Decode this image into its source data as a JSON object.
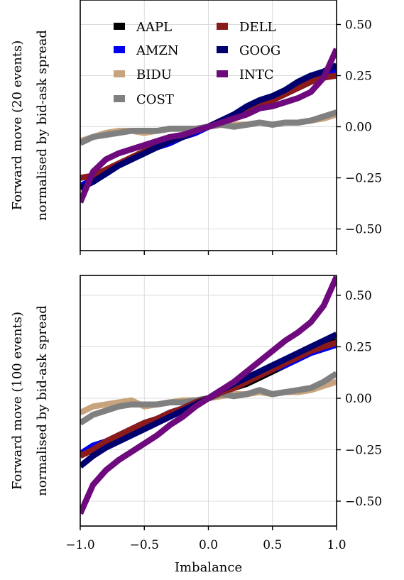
{
  "chart_data": [
    {
      "type": "line",
      "ylabel_lines": [
        "Forward move (20 events)",
        "normalised by bid-ask spread"
      ],
      "xlabel": "",
      "xlim": [
        -1.0,
        1.0
      ],
      "ylim": [
        -0.6,
        0.6
      ],
      "yaxis_side": "right",
      "grid": true,
      "legend": "top-center",
      "xticks": [
        -1.0,
        -0.5,
        0.0,
        0.5,
        1.0
      ],
      "yticks": [
        0.5,
        0.25,
        0.0,
        -0.25,
        -0.5
      ],
      "ytick_labels": [
        "0.50",
        "0.25",
        "0.00",
        "−0.25",
        "−0.50"
      ],
      "x": [
        -1.0,
        -0.9,
        -0.8,
        -0.7,
        -0.6,
        -0.5,
        -0.4,
        -0.3,
        -0.2,
        -0.1,
        0.0,
        0.1,
        0.2,
        0.3,
        0.4,
        0.5,
        0.6,
        0.7,
        0.8,
        0.9,
        1.0
      ],
      "series": [
        {
          "name": "AAPL",
          "color": "#000000",
          "values": [
            -0.29,
            -0.26,
            -0.22,
            -0.19,
            -0.16,
            -0.13,
            -0.1,
            -0.08,
            -0.05,
            -0.03,
            0.0,
            0.03,
            0.05,
            0.08,
            0.11,
            0.13,
            0.16,
            0.19,
            0.22,
            0.25,
            0.27
          ]
        },
        {
          "name": "AMZN",
          "color": "#0000ee",
          "values": [
            -0.29,
            -0.26,
            -0.23,
            -0.19,
            -0.16,
            -0.13,
            -0.1,
            -0.08,
            -0.05,
            -0.03,
            0.0,
            0.03,
            0.06,
            0.08,
            0.11,
            0.14,
            0.17,
            0.2,
            0.23,
            0.26,
            0.28
          ]
        },
        {
          "name": "BIDU",
          "color": "#c8a47e",
          "values": [
            -0.07,
            -0.05,
            -0.03,
            -0.02,
            -0.02,
            -0.03,
            -0.02,
            -0.01,
            -0.01,
            -0.01,
            0.0,
            0.01,
            0.01,
            0.01,
            0.02,
            0.01,
            0.02,
            0.02,
            0.03,
            0.04,
            0.06
          ]
        },
        {
          "name": "COST",
          "color": "#808080",
          "values": [
            -0.08,
            -0.05,
            -0.04,
            -0.03,
            -0.02,
            -0.02,
            -0.02,
            -0.01,
            -0.01,
            -0.01,
            0.0,
            0.01,
            0.0,
            0.01,
            0.02,
            0.01,
            0.02,
            0.02,
            0.03,
            0.05,
            0.07
          ]
        },
        {
          "name": "DELL",
          "color": "#8b1a1a",
          "values": [
            -0.25,
            -0.24,
            -0.21,
            -0.18,
            -0.15,
            -0.12,
            -0.1,
            -0.07,
            -0.05,
            -0.02,
            0.0,
            0.03,
            0.05,
            0.08,
            0.11,
            0.13,
            0.16,
            0.19,
            0.22,
            0.24,
            0.25
          ]
        },
        {
          "name": "GOOG",
          "color": "#00006e",
          "values": [
            -0.3,
            -0.27,
            -0.23,
            -0.19,
            -0.16,
            -0.13,
            -0.1,
            -0.07,
            -0.05,
            -0.02,
            0.0,
            0.03,
            0.06,
            0.1,
            0.13,
            0.15,
            0.18,
            0.22,
            0.25,
            0.27,
            0.3
          ]
        },
        {
          "name": "INTC",
          "color": "#6e0a7e",
          "values": [
            -0.37,
            -0.22,
            -0.16,
            -0.13,
            -0.11,
            -0.09,
            -0.07,
            -0.05,
            -0.04,
            -0.02,
            0.0,
            0.02,
            0.04,
            0.06,
            0.09,
            0.1,
            0.12,
            0.14,
            0.17,
            0.24,
            0.38
          ]
        }
      ]
    },
    {
      "type": "line",
      "ylabel_lines": [
        "Forward move (100 events)",
        "normalised by bid-ask spread"
      ],
      "xlabel": "Imbalance",
      "xlim": [
        -1.0,
        1.0
      ],
      "ylim": [
        -0.6,
        0.6
      ],
      "yaxis_side": "right",
      "grid": true,
      "xticks": [
        -1.0,
        -0.5,
        0.0,
        0.5,
        1.0
      ],
      "xtick_labels": [
        "−1.0",
        "−0.5",
        "0.0",
        "0.5",
        "1.0"
      ],
      "yticks": [
        0.5,
        0.25,
        0.0,
        -0.25,
        -0.5
      ],
      "ytick_labels": [
        "0.50",
        "0.25",
        "0.00",
        "−0.25",
        "−0.50"
      ],
      "x": [
        -1.0,
        -0.9,
        -0.8,
        -0.7,
        -0.6,
        -0.5,
        -0.4,
        -0.3,
        -0.2,
        -0.1,
        0.0,
        0.1,
        0.2,
        0.3,
        0.4,
        0.5,
        0.6,
        0.7,
        0.8,
        0.9,
        1.0
      ],
      "series": [
        {
          "name": "AAPL",
          "color": "#000000",
          "values": [
            -0.28,
            -0.24,
            -0.21,
            -0.18,
            -0.15,
            -0.12,
            -0.1,
            -0.07,
            -0.05,
            -0.02,
            0.0,
            0.03,
            0.05,
            0.07,
            0.1,
            0.13,
            0.16,
            0.2,
            0.23,
            0.25,
            0.28
          ]
        },
        {
          "name": "AMZN",
          "color": "#0000ee",
          "values": [
            -0.27,
            -0.23,
            -0.21,
            -0.18,
            -0.15,
            -0.12,
            -0.1,
            -0.07,
            -0.05,
            -0.02,
            0.0,
            0.03,
            0.06,
            0.09,
            0.11,
            0.14,
            0.16,
            0.19,
            0.22,
            0.24,
            0.26
          ]
        },
        {
          "name": "BIDU",
          "color": "#c8a47e",
          "values": [
            -0.07,
            -0.04,
            -0.03,
            -0.02,
            -0.01,
            -0.04,
            -0.03,
            -0.02,
            -0.01,
            -0.01,
            0.0,
            0.01,
            0.02,
            0.02,
            0.03,
            0.02,
            0.03,
            0.03,
            0.04,
            0.06,
            0.08
          ]
        },
        {
          "name": "COST",
          "color": "#808080",
          "values": [
            -0.12,
            -0.08,
            -0.06,
            -0.04,
            -0.03,
            -0.03,
            -0.03,
            -0.02,
            -0.02,
            -0.01,
            0.0,
            0.02,
            0.01,
            0.02,
            0.04,
            0.02,
            0.03,
            0.04,
            0.05,
            0.08,
            0.12
          ]
        },
        {
          "name": "DELL",
          "color": "#8b1a1a",
          "values": [
            -0.28,
            -0.25,
            -0.21,
            -0.18,
            -0.15,
            -0.12,
            -0.1,
            -0.07,
            -0.05,
            -0.02,
            0.0,
            0.03,
            0.05,
            0.08,
            0.11,
            0.14,
            0.17,
            0.2,
            0.23,
            0.25,
            0.27
          ]
        },
        {
          "name": "GOOG",
          "color": "#00006e",
          "values": [
            -0.33,
            -0.28,
            -0.24,
            -0.21,
            -0.18,
            -0.15,
            -0.12,
            -0.09,
            -0.06,
            -0.03,
            0.0,
            0.04,
            0.07,
            0.1,
            0.13,
            0.16,
            0.19,
            0.22,
            0.25,
            0.28,
            0.31
          ]
        },
        {
          "name": "INTC",
          "color": "#6e0a7e",
          "values": [
            -0.56,
            -0.42,
            -0.35,
            -0.3,
            -0.26,
            -0.22,
            -0.18,
            -0.13,
            -0.09,
            -0.04,
            0.0,
            0.04,
            0.08,
            0.13,
            0.18,
            0.23,
            0.28,
            0.32,
            0.37,
            0.45,
            0.59
          ]
        }
      ]
    }
  ]
}
